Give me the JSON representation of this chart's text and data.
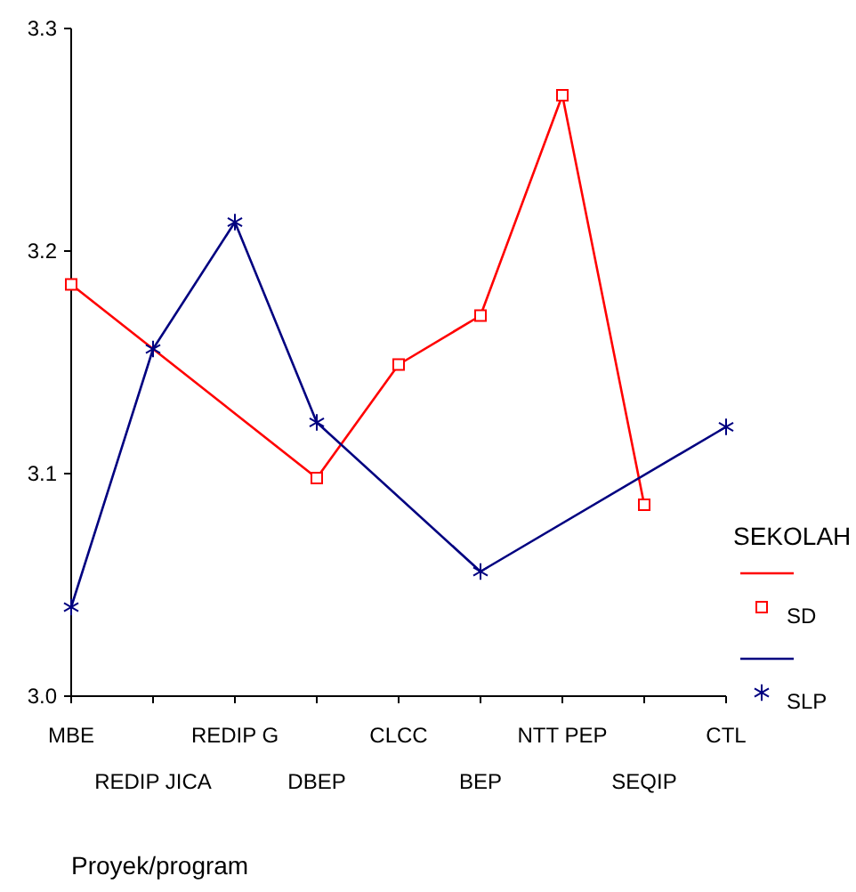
{
  "chart_data": {
    "type": "line",
    "xlabel": "Proyek/program",
    "legend_title": "SEKOLAH",
    "legend": "right",
    "grid": false,
    "categories": [
      "MBE",
      "REDIP JICA",
      "REDIP G",
      "DBEP",
      "CLCC",
      "BEP",
      "NTT PEP",
      "SEQIP",
      "CTL"
    ],
    "ylim": [
      3.0,
      3.3
    ],
    "yticks": [
      {
        "value": 3.0,
        "label": "3.0"
      },
      {
        "value": 3.1,
        "label": "3.1"
      },
      {
        "value": 3.2,
        "label": "3.2"
      },
      {
        "value": 3.3,
        "label": "3.3"
      }
    ],
    "series": [
      {
        "name": "SD",
        "color": "#ff0000",
        "marker": "square",
        "values": [
          3.185,
          null,
          null,
          3.098,
          3.149,
          3.171,
          3.27,
          3.086,
          null
        ]
      },
      {
        "name": "SLP",
        "color": "#000080",
        "marker": "cross",
        "values": [
          3.04,
          3.156,
          3.213,
          3.123,
          null,
          3.056,
          null,
          null,
          3.121
        ]
      }
    ]
  }
}
